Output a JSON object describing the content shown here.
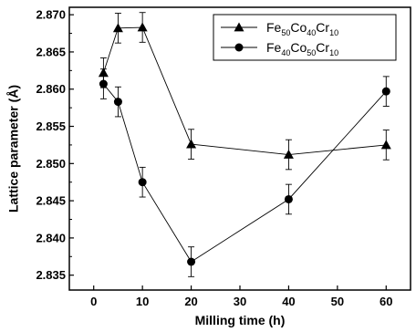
{
  "chart_data": {
    "type": "line",
    "xlabel": "Milling time (h)",
    "ylabel": "Lattice parameter (Å)",
    "xlim": [
      -5,
      65
    ],
    "ylim": [
      2.833,
      2.871
    ],
    "xticks": [
      0,
      10,
      20,
      30,
      40,
      50,
      60
    ],
    "xtick_labels": [
      "0",
      "10",
      "20",
      "30",
      "40",
      "50",
      "60"
    ],
    "yticks": [
      2.835,
      2.84,
      2.845,
      2.85,
      2.855,
      2.86,
      2.865,
      2.87
    ],
    "ytick_labels": [
      "2.835",
      "2.840",
      "2.845",
      "2.850",
      "2.855",
      "2.860",
      "2.865",
      "2.870"
    ],
    "grid": false,
    "legend_position": "top-right",
    "series": [
      {
        "legend": {
          "base": "Fe",
          "n1": "50",
          "el2": "Co",
          "n2": "40",
          "el3": "Cr",
          "n3": "10"
        },
        "marker": "triangle",
        "x": [
          2,
          5,
          10,
          20,
          40,
          60
        ],
        "y": [
          2.8622,
          2.8682,
          2.8683,
          2.8526,
          2.8512,
          2.8525
        ],
        "error": [
          0.002,
          0.002,
          0.002,
          0.002,
          0.002,
          0.002
        ]
      },
      {
        "legend": {
          "base": "Fe",
          "n1": "40",
          "el2": "Co",
          "n2": "50",
          "el3": "Cr",
          "n3": "10"
        },
        "marker": "circle",
        "x": [
          2,
          5,
          10,
          20,
          40,
          60
        ],
        "y": [
          2.8607,
          2.8583,
          2.8475,
          2.8368,
          2.8452,
          2.8597
        ],
        "error": [
          0.002,
          0.002,
          0.002,
          0.002,
          0.002,
          0.002
        ]
      }
    ]
  }
}
